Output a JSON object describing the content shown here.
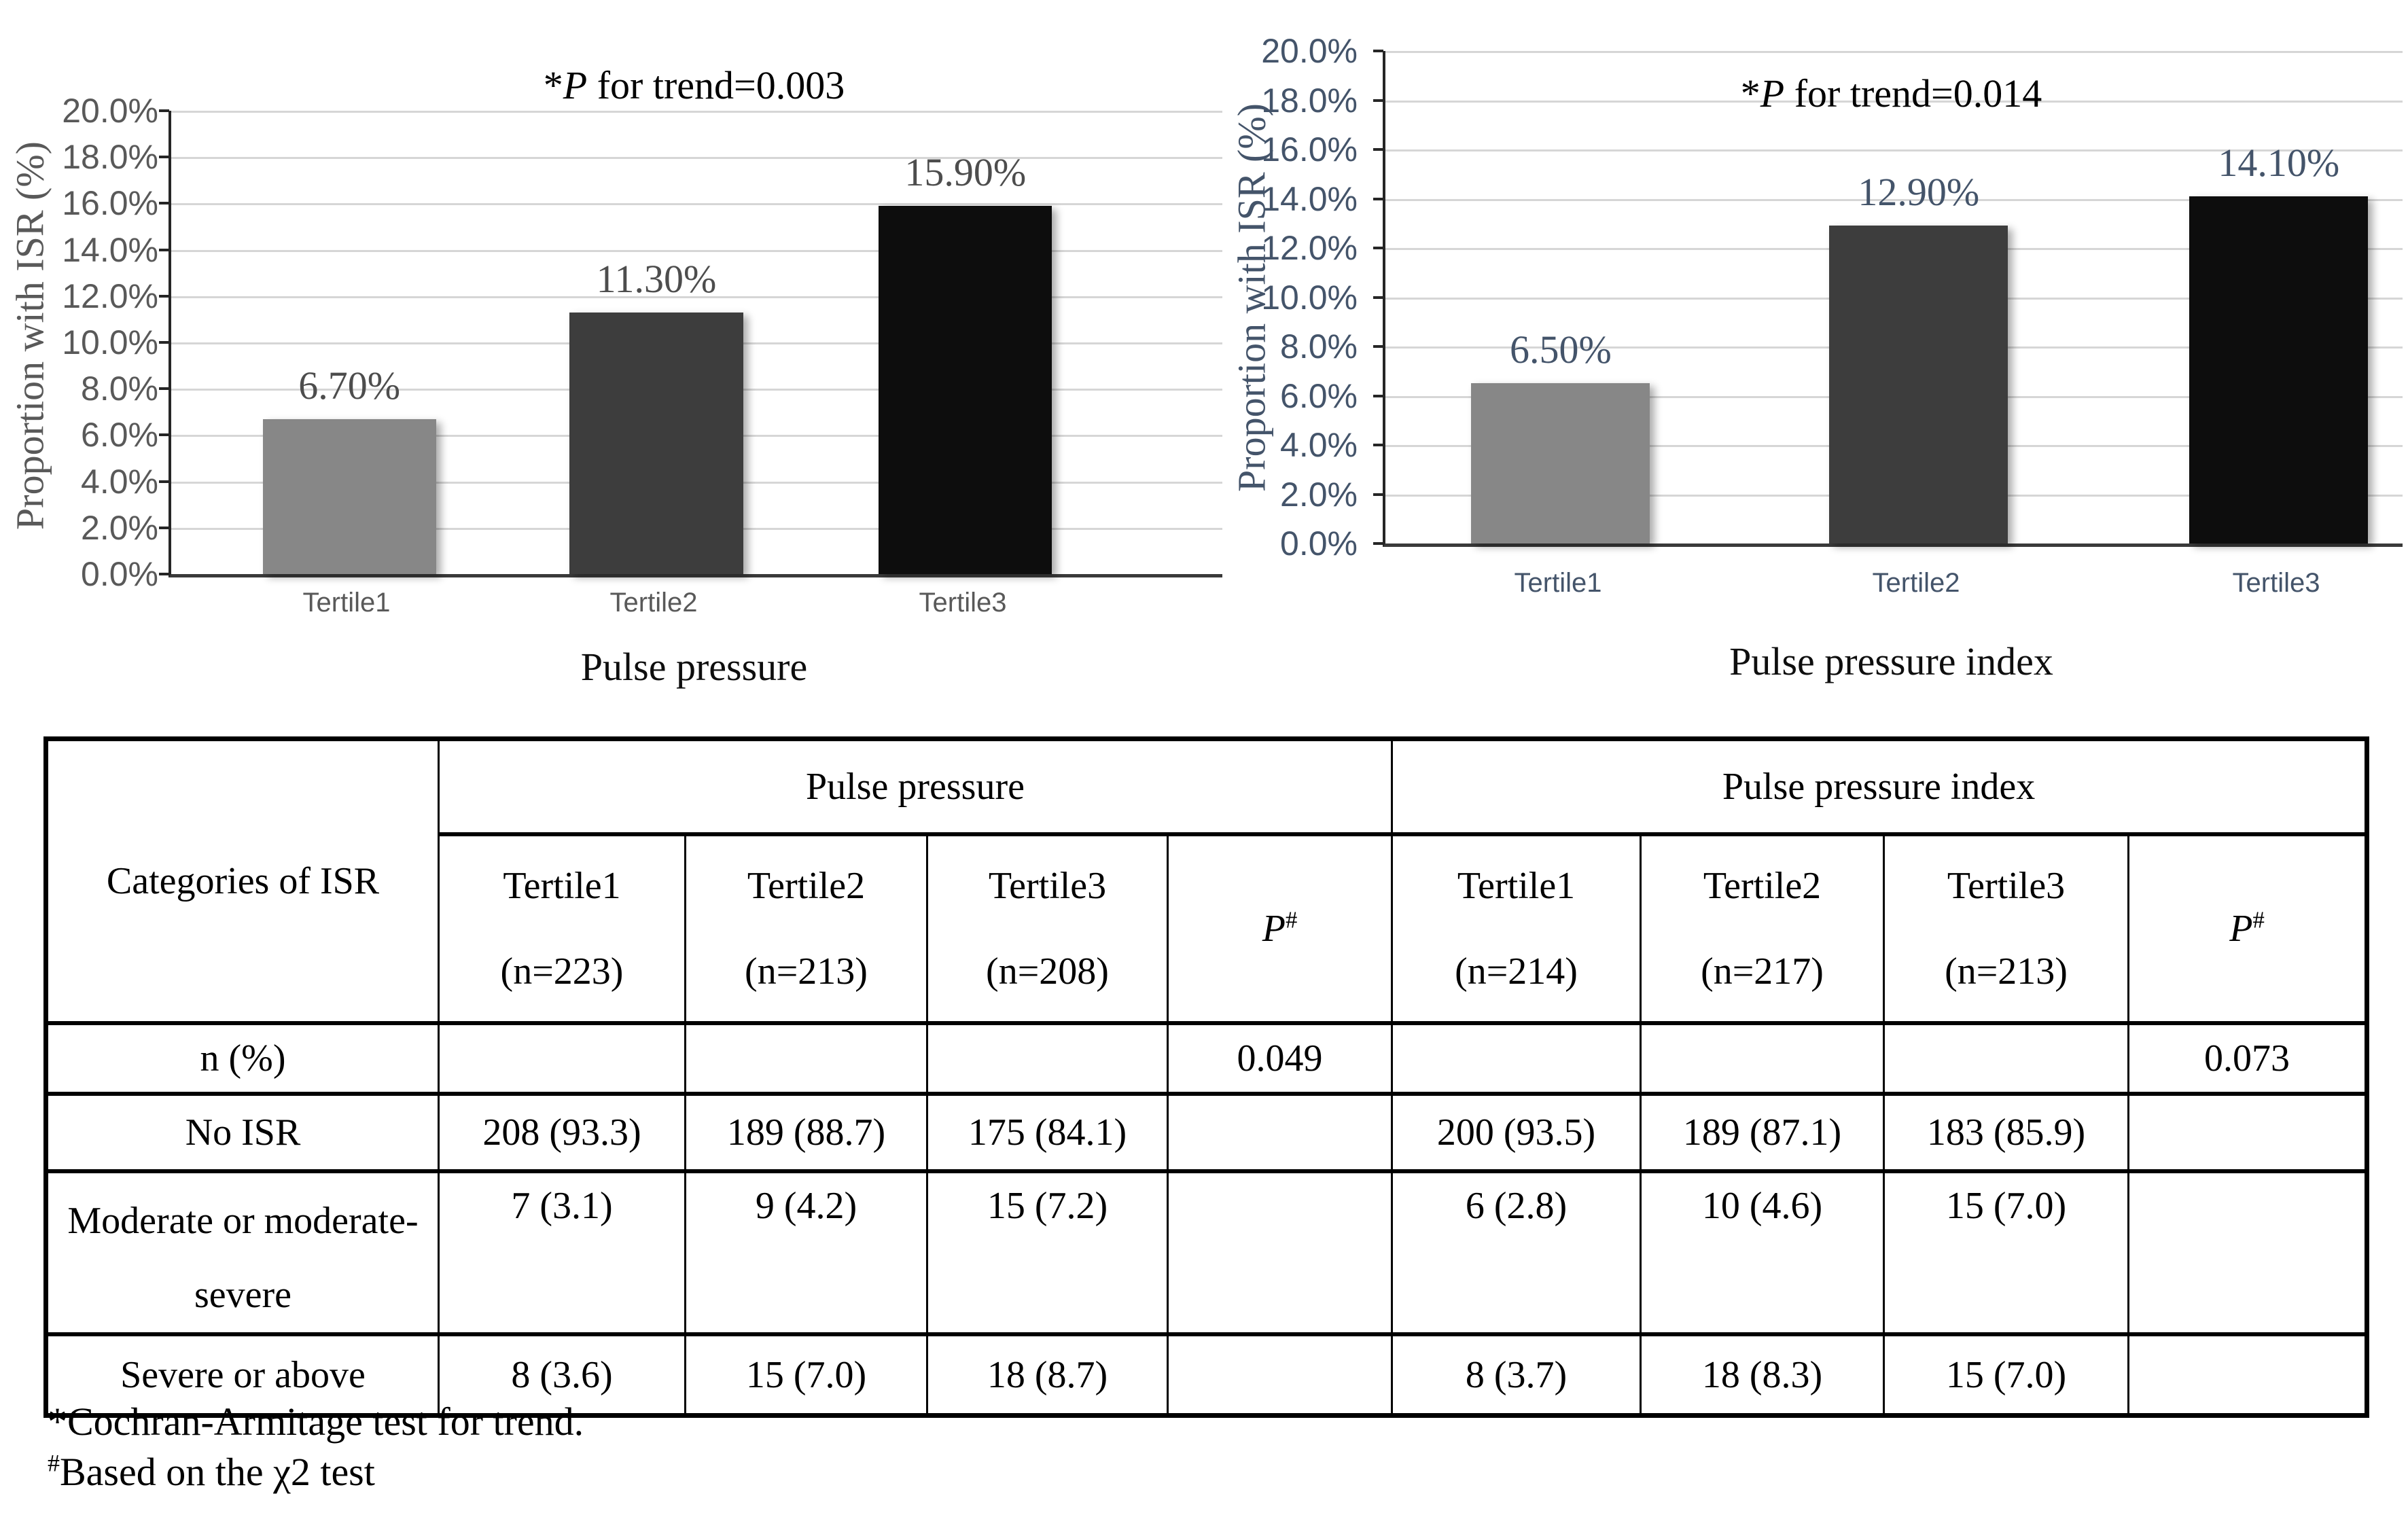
{
  "chart_data": [
    {
      "type": "bar",
      "categories": [
        "Tertile1",
        "Tertile2",
        "Tertile3"
      ],
      "values_percent": [
        6.7,
        11.3,
        15.9
      ],
      "value_labels": [
        "6.70%",
        "11.30%",
        "15.90%"
      ],
      "annotation": {
        "star": "*",
        "p": "P",
        "rest": " for trend=0.003"
      },
      "xlabel": "Pulse pressure",
      "ylabel": "Proportion with ISR (%)",
      "ylim": [
        0,
        20
      ],
      "y_tick_labels": [
        "20.0%",
        "18.0%",
        "16.0%",
        "14.0%",
        "12.0%",
        "10.0%",
        "8.0%",
        "6.0%",
        "4.0%",
        "2.0%",
        "0.0%"
      ],
      "grid": true,
      "legend": "none",
      "bar_colors": [
        "#878787",
        "#3d3d3d",
        "#0d0d0d"
      ],
      "axis_text_color": "#595959",
      "data_label_color": "#4d4d4d"
    },
    {
      "type": "bar",
      "categories": [
        "Tertile1",
        "Tertile2",
        "Tertile3"
      ],
      "values_percent": [
        6.5,
        12.9,
        14.1
      ],
      "value_labels": [
        "6.50%",
        "12.90%",
        "14.10%"
      ],
      "annotation": {
        "star": "*",
        "p": "P",
        "rest": " for trend=0.014"
      },
      "xlabel": "Pulse pressure index",
      "ylabel": "Proportion with ISR (%)",
      "ylim": [
        0,
        20
      ],
      "y_tick_labels": [
        "20.0%",
        "18.0%",
        "16.0%",
        "14.0%",
        "12.0%",
        "10.0%",
        "8.0%",
        "6.0%",
        "4.0%",
        "2.0%",
        "0.0%"
      ],
      "grid": true,
      "legend": "none",
      "bar_colors": [
        "#878787",
        "#3d3d3d",
        "#0d0d0d"
      ],
      "axis_text_color": "#44546a",
      "data_label_color": "#44546a"
    }
  ],
  "table": {
    "corner": "Categories of ISR",
    "groups": [
      "Pulse pressure",
      "Pulse pressure index"
    ],
    "p_symbol": {
      "p": "P",
      "sup": "#"
    },
    "subcols": [
      {
        "t": "Tertile1",
        "n": "(n=223)"
      },
      {
        "t": "Tertile2",
        "n": "(n=213)"
      },
      {
        "t": "Tertile3",
        "n": "(n=208)"
      },
      {
        "t": "Tertile1",
        "n": "(n=214)"
      },
      {
        "t": "Tertile2",
        "n": "(n=217)"
      },
      {
        "t": "Tertile3",
        "n": "(n=213)"
      }
    ],
    "rows": [
      {
        "label": "n (%)",
        "cells": [
          "",
          "",
          "",
          "0.049",
          "",
          "",
          "",
          "0.073"
        ]
      },
      {
        "label": "No ISR",
        "cells": [
          "208 (93.3)",
          "189 (88.7)",
          "175 (84.1)",
          "",
          "200 (93.5)",
          "189 (87.1)",
          "183 (85.9)",
          ""
        ]
      },
      {
        "label": "Moderate or moderate-severe",
        "cells": [
          "7 (3.1)",
          "9 (4.2)",
          "15 (7.2)",
          "",
          "6 (2.8)",
          "10 (4.6)",
          "15 (7.0)",
          ""
        ]
      },
      {
        "label": "Severe or above",
        "cells": [
          "8 (3.6)",
          "15 (7.0)",
          "18 (8.7)",
          "",
          "8 (3.7)",
          "18 (8.3)",
          "15 (7.0)",
          ""
        ]
      }
    ]
  },
  "footnotes": [
    {
      "marker": "*",
      "text": "Cochran-Armitage test for trend."
    },
    {
      "marker": "#",
      "text": "Based on the χ2 test"
    }
  ]
}
